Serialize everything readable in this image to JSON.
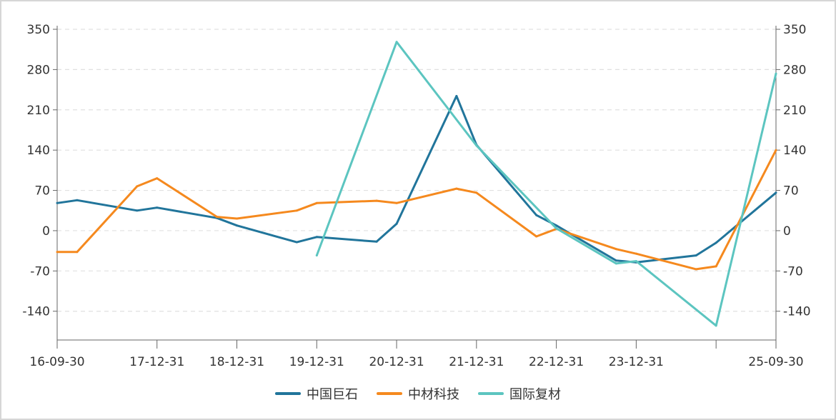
{
  "chart_data": {
    "type": "line",
    "x": [
      "16-09-30",
      "16-12-31",
      "17-09-30",
      "17-12-31",
      "18-09-30",
      "18-12-31",
      "19-09-30",
      "19-12-31",
      "20-09-30",
      "20-12-31",
      "21-09-30",
      "21-12-31",
      "22-09-30",
      "22-12-31",
      "23-09-30",
      "23-12-31",
      "24-09-30",
      "24-12-31",
      "25-09-30"
    ],
    "x_tick_labels": [
      "16-09-30",
      "17-12-31",
      "18-12-31",
      "19-12-31",
      "20-12-31",
      "21-12-31",
      "22-12-31",
      "23-12-31",
      "",
      "25-09-30"
    ],
    "x_tick_dates": [
      "16-09-30",
      "17-12-31",
      "18-12-31",
      "19-12-31",
      "20-12-31",
      "21-12-31",
      "22-12-31",
      "23-12-31",
      "24-12-31",
      "25-09-30"
    ],
    "series": [
      {
        "name": "中国巨石",
        "color": "#21759b",
        "values": [
          48,
          53,
          35,
          40,
          22,
          9,
          -20,
          -11,
          -19,
          12,
          234,
          149,
          27,
          9,
          -52,
          -55,
          -43,
          -21,
          66
        ]
      },
      {
        "name": "中材科技",
        "color": "#f5891e",
        "values": [
          -37,
          -37,
          77,
          91,
          24,
          21,
          35,
          48,
          52,
          48,
          73,
          66,
          -10,
          3,
          -32,
          -40,
          -67,
          -62,
          140
        ]
      },
      {
        "name": "国际复材",
        "color": "#5cc5c0",
        "values": [
          null,
          null,
          null,
          null,
          null,
          null,
          null,
          -43,
          null,
          328,
          null,
          148,
          null,
          4,
          -57,
          -53,
          null,
          -165,
          273
        ]
      }
    ],
    "y_ticks": [
      -140,
      -70,
      0,
      70,
      140,
      210,
      280,
      350
    ],
    "ylim": [
      -190,
      350
    ],
    "grid": true,
    "legend_position": "bottom",
    "dual_y_axis": true
  }
}
